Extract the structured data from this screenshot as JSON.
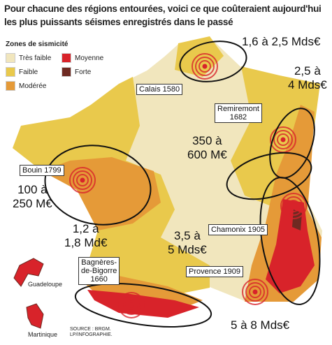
{
  "title": [
    "Pour chacune des régions entourées, voici ce que coûteraient aujourd'hui",
    "les plus puissants séismes enregistrés dans le passé"
  ],
  "legend": {
    "title": "Zones de sismicité",
    "items": [
      {
        "label": "Très faible",
        "color": "#f1e6bd"
      },
      {
        "label": "Faible",
        "color": "#e9c94c"
      },
      {
        "label": "Modérée",
        "color": "#e59a38"
      },
      {
        "label": "Moyenne",
        "color": "#d8232a"
      },
      {
        "label": "Forte",
        "color": "#6e2a22"
      }
    ]
  },
  "earthquakes": [
    {
      "lines": [
        "Calais 1580"
      ]
    },
    {
      "lines": [
        "Remiremont",
        "1682"
      ]
    },
    {
      "lines": [
        "Bouin 1799"
      ]
    },
    {
      "lines": [
        "Chamonix 1905"
      ]
    },
    {
      "lines": [
        "Provence 1909"
      ]
    },
    {
      "lines": [
        "Bagnères-",
        "de-Bigorre",
        "1660"
      ]
    }
  ],
  "costs": [
    {
      "lines": [
        "1,6 à 2,5 Mds€"
      ]
    },
    {
      "lines": [
        "2,5 à",
        "4 Mds€"
      ]
    },
    {
      "lines": [
        "350 à",
        "600 M€"
      ]
    },
    {
      "lines": [
        "100 à",
        "250 M€"
      ]
    },
    {
      "lines": [
        "1,2 à",
        "1,8 Md€"
      ]
    },
    {
      "lines": [
        "3,5 à",
        "5 Mds€"
      ]
    },
    {
      "lines": [
        "5 à 8 Mds€"
      ]
    }
  ],
  "insets": [
    "Guadeloupe",
    "Martinique"
  ],
  "source": [
    "SOURCE : BRGM.",
    "LP/INFOGRAPHIE."
  ]
}
